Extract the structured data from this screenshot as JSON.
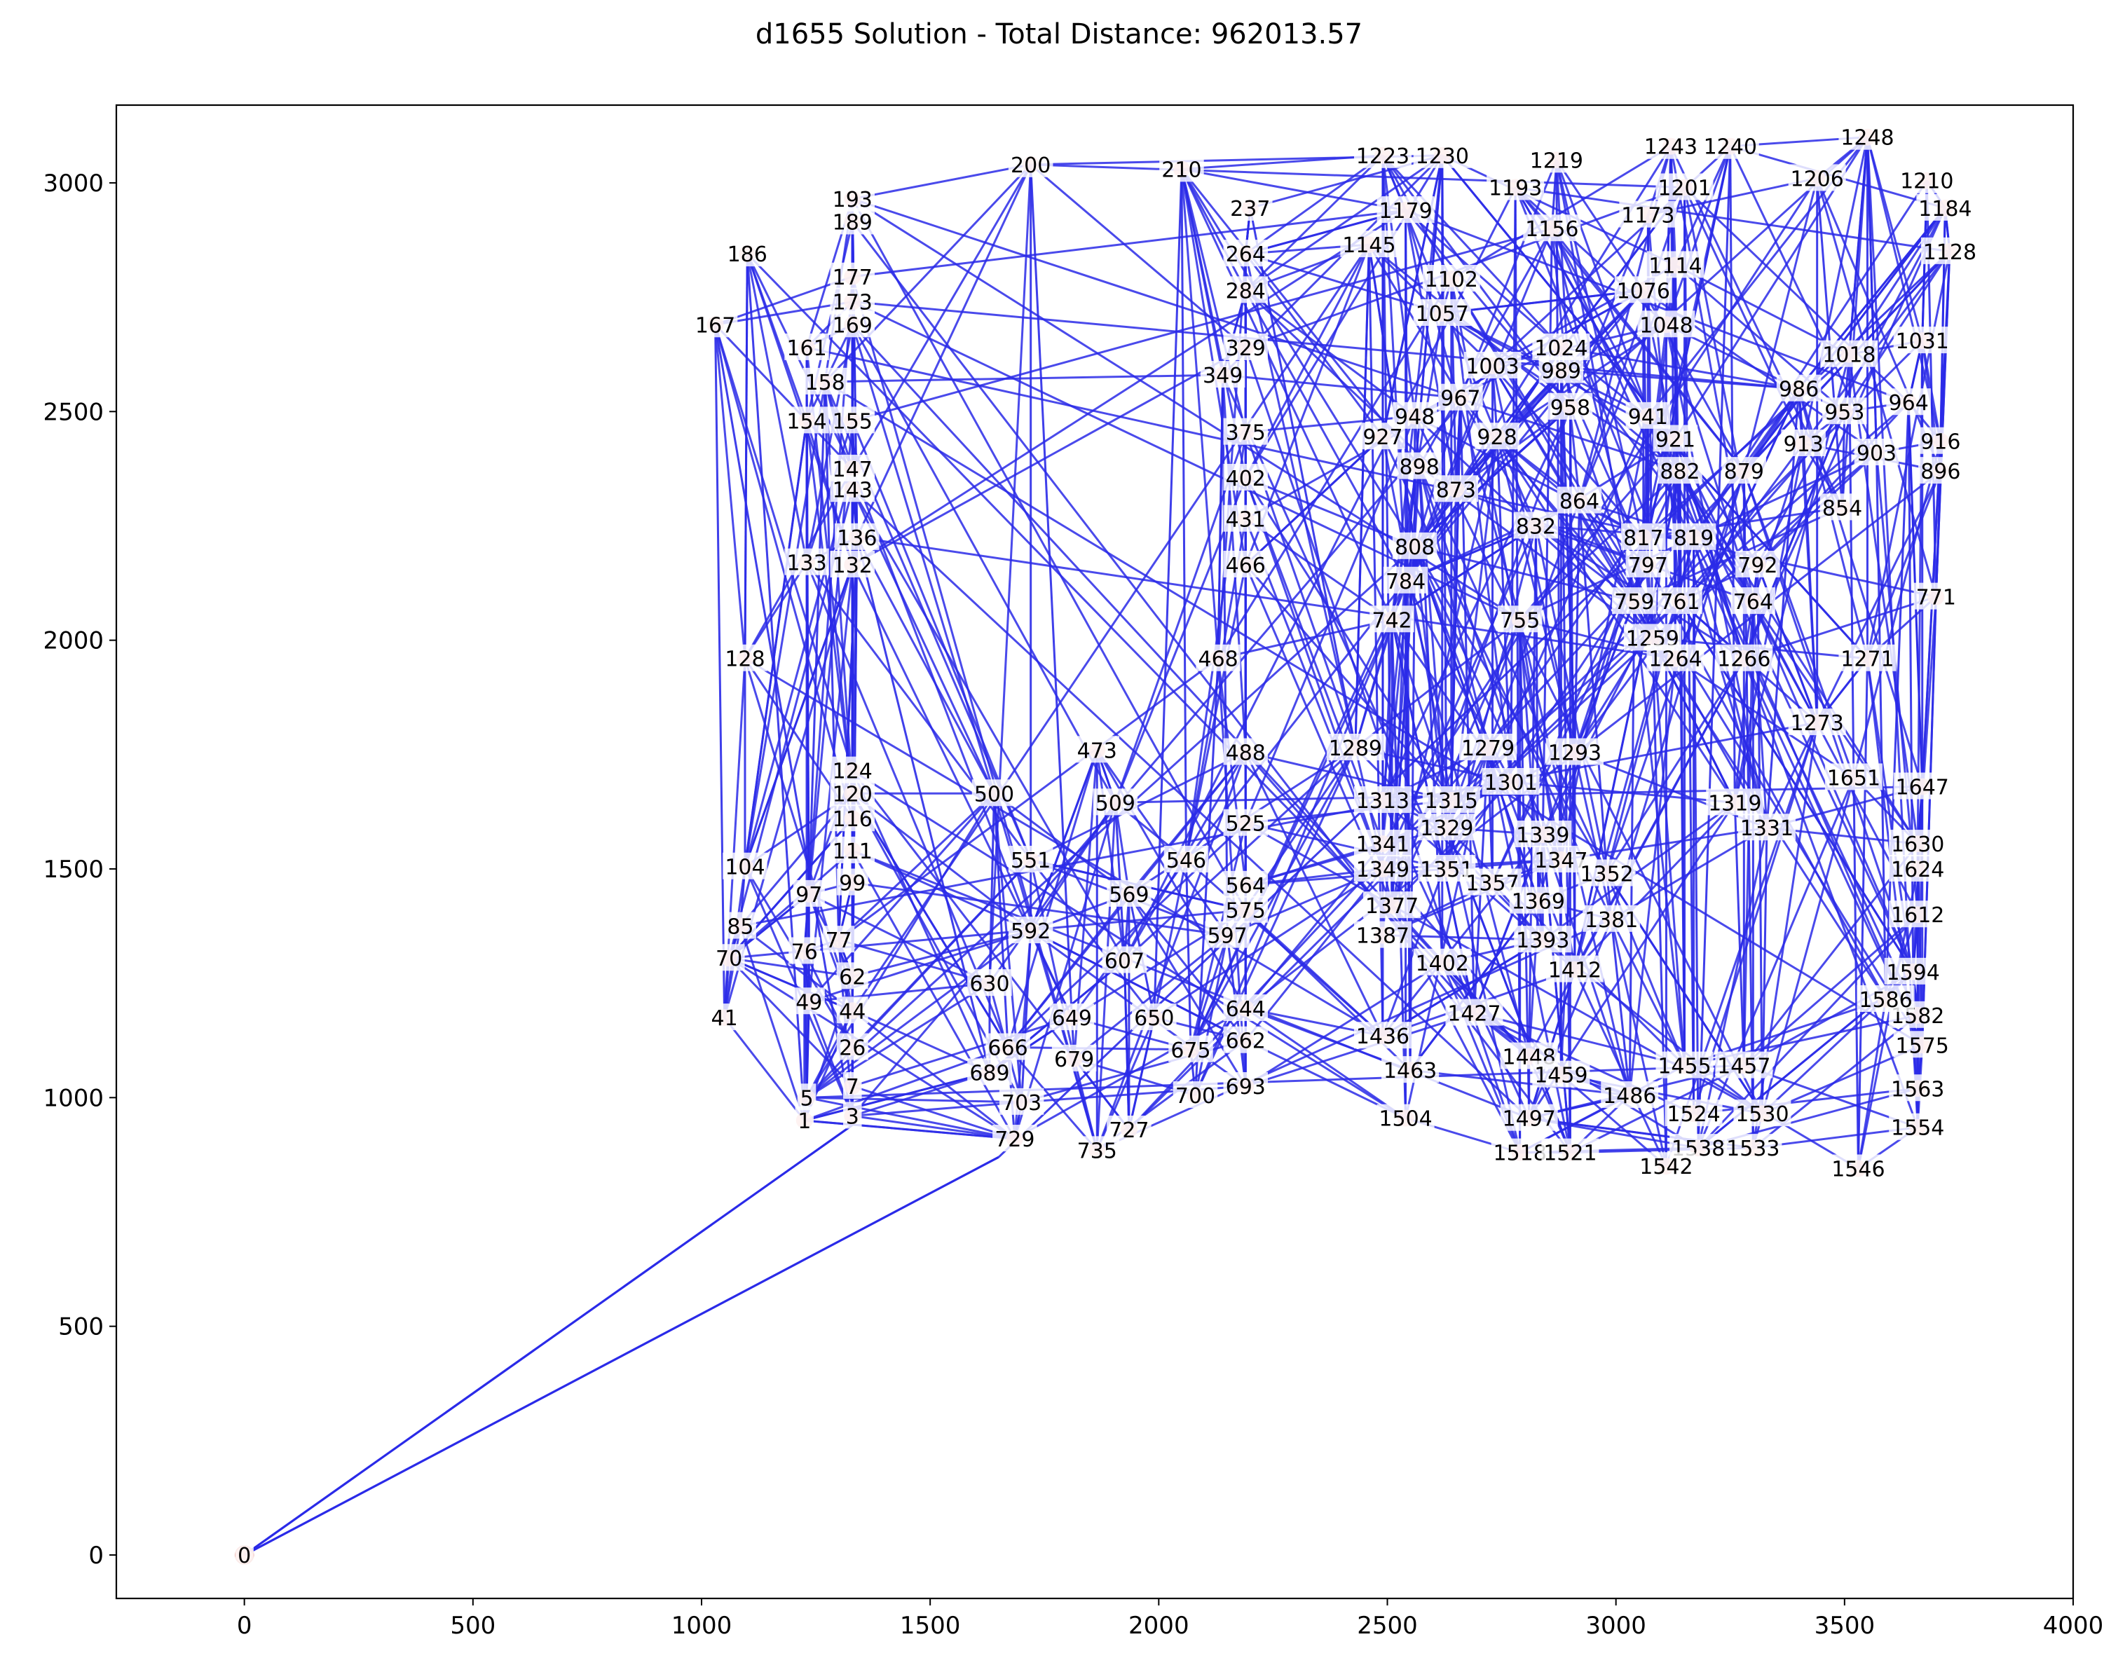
{
  "chart_data": {
    "type": "line",
    "subtype": "tsp-route",
    "title": "d1655 Solution - Total Distance: 962013.57",
    "xlabel": "",
    "ylabel": "",
    "xlim": [
      -280,
      4000
    ],
    "ylim": [
      -95,
      3170
    ],
    "xticks": [
      0,
      500,
      1000,
      1500,
      2000,
      2500,
      3000,
      3500,
      4000
    ],
    "yticks": [
      0,
      500,
      1000,
      1500,
      2000,
      2500,
      3000
    ],
    "grid": false,
    "legend": "none",
    "node_count": 1655,
    "colors": {
      "route": "#2a2ae8",
      "node": "#f4a8a0",
      "label_box": "#ffffff"
    },
    "depot": {
      "label": "0",
      "x": 0,
      "y": 0
    },
    "route_entry": [
      {
        "from": "0",
        "x": 1330,
        "y": 940
      },
      {
        "from": "0",
        "x": 1650,
        "y": 870
      }
    ],
    "visible_nodes": [
      {
        "label": "1",
        "x": 1225,
        "y": 950
      },
      {
        "label": "3",
        "x": 1330,
        "y": 960
      },
      {
        "label": "5",
        "x": 1230,
        "y": 1000
      },
      {
        "label": "7",
        "x": 1330,
        "y": 1025
      },
      {
        "label": "26",
        "x": 1330,
        "y": 1110
      },
      {
        "label": "41",
        "x": 1050,
        "y": 1175
      },
      {
        "label": "44",
        "x": 1330,
        "y": 1190
      },
      {
        "label": "49",
        "x": 1235,
        "y": 1210
      },
      {
        "label": "62",
        "x": 1330,
        "y": 1265
      },
      {
        "label": "70",
        "x": 1060,
        "y": 1305
      },
      {
        "label": "76",
        "x": 1225,
        "y": 1320
      },
      {
        "label": "77",
        "x": 1300,
        "y": 1345
      },
      {
        "label": "85",
        "x": 1085,
        "y": 1375
      },
      {
        "label": "97",
        "x": 1235,
        "y": 1445
      },
      {
        "label": "99",
        "x": 1330,
        "y": 1470
      },
      {
        "label": "104",
        "x": 1095,
        "y": 1505
      },
      {
        "label": "111",
        "x": 1330,
        "y": 1540
      },
      {
        "label": "116",
        "x": 1330,
        "y": 1610
      },
      {
        "label": "120",
        "x": 1330,
        "y": 1665
      },
      {
        "label": "124",
        "x": 1330,
        "y": 1715
      },
      {
        "label": "128",
        "x": 1095,
        "y": 1960
      },
      {
        "label": "132",
        "x": 1330,
        "y": 2165
      },
      {
        "label": "133",
        "x": 1230,
        "y": 2170
      },
      {
        "label": "136",
        "x": 1340,
        "y": 2225
      },
      {
        "label": "143",
        "x": 1330,
        "y": 2330
      },
      {
        "label": "147",
        "x": 1330,
        "y": 2375
      },
      {
        "label": "154",
        "x": 1230,
        "y": 2480
      },
      {
        "label": "155",
        "x": 1330,
        "y": 2480
      },
      {
        "label": "158",
        "x": 1270,
        "y": 2565
      },
      {
        "label": "161",
        "x": 1230,
        "y": 2640
      },
      {
        "label": "167",
        "x": 1030,
        "y": 2690
      },
      {
        "label": "169",
        "x": 1330,
        "y": 2690
      },
      {
        "label": "173",
        "x": 1330,
        "y": 2740
      },
      {
        "label": "177",
        "x": 1330,
        "y": 2795
      },
      {
        "label": "186",
        "x": 1100,
        "y": 2845
      },
      {
        "label": "189",
        "x": 1330,
        "y": 2915
      },
      {
        "label": "193",
        "x": 1330,
        "y": 2965
      },
      {
        "label": "200",
        "x": 1720,
        "y": 3040
      },
      {
        "label": "210",
        "x": 2050,
        "y": 3030
      },
      {
        "label": "237",
        "x": 2200,
        "y": 2945
      },
      {
        "label": "264",
        "x": 2190,
        "y": 2845
      },
      {
        "label": "284",
        "x": 2190,
        "y": 2765
      },
      {
        "label": "329",
        "x": 2190,
        "y": 2640
      },
      {
        "label": "349",
        "x": 2140,
        "y": 2580
      },
      {
        "label": "375",
        "x": 2190,
        "y": 2455
      },
      {
        "label": "402",
        "x": 2190,
        "y": 2355
      },
      {
        "label": "431",
        "x": 2190,
        "y": 2265
      },
      {
        "label": "466",
        "x": 2190,
        "y": 2165
      },
      {
        "label": "468",
        "x": 2130,
        "y": 1960
      },
      {
        "label": "473",
        "x": 1865,
        "y": 1760
      },
      {
        "label": "488",
        "x": 2190,
        "y": 1755
      },
      {
        "label": "500",
        "x": 1640,
        "y": 1665
      },
      {
        "label": "509",
        "x": 1905,
        "y": 1645
      },
      {
        "label": "525",
        "x": 2190,
        "y": 1600
      },
      {
        "label": "546",
        "x": 2060,
        "y": 1520
      },
      {
        "label": "551",
        "x": 1720,
        "y": 1520
      },
      {
        "label": "564",
        "x": 2190,
        "y": 1465
      },
      {
        "label": "569",
        "x": 1935,
        "y": 1445
      },
      {
        "label": "575",
        "x": 2190,
        "y": 1410
      },
      {
        "label": "592",
        "x": 1720,
        "y": 1365
      },
      {
        "label": "597",
        "x": 2150,
        "y": 1355
      },
      {
        "label": "607",
        "x": 1925,
        "y": 1300
      },
      {
        "label": "630",
        "x": 1630,
        "y": 1250
      },
      {
        "label": "644",
        "x": 2190,
        "y": 1195
      },
      {
        "label": "649",
        "x": 1810,
        "y": 1175
      },
      {
        "label": "650",
        "x": 1990,
        "y": 1175
      },
      {
        "label": "662",
        "x": 2190,
        "y": 1125
      },
      {
        "label": "666",
        "x": 1670,
        "y": 1110
      },
      {
        "label": "675",
        "x": 2070,
        "y": 1105
      },
      {
        "label": "679",
        "x": 1815,
        "y": 1085
      },
      {
        "label": "689",
        "x": 1630,
        "y": 1055
      },
      {
        "label": "693",
        "x": 2190,
        "y": 1025
      },
      {
        "label": "700",
        "x": 2080,
        "y": 1005
      },
      {
        "label": "703",
        "x": 1700,
        "y": 990
      },
      {
        "label": "727",
        "x": 1935,
        "y": 930
      },
      {
        "label": "729",
        "x": 1685,
        "y": 910
      },
      {
        "label": "735",
        "x": 1865,
        "y": 885
      },
      {
        "label": "742",
        "x": 2510,
        "y": 2045
      },
      {
        "label": "755",
        "x": 2790,
        "y": 2045
      },
      {
        "label": "759",
        "x": 3040,
        "y": 2085
      },
      {
        "label": "761",
        "x": 3140,
        "y": 2085
      },
      {
        "label": "764",
        "x": 3300,
        "y": 2085
      },
      {
        "label": "771",
        "x": 3700,
        "y": 2095
      },
      {
        "label": "784",
        "x": 2540,
        "y": 2130
      },
      {
        "label": "792",
        "x": 3310,
        "y": 2165
      },
      {
        "label": "797",
        "x": 3070,
        "y": 2165
      },
      {
        "label": "808",
        "x": 2560,
        "y": 2205
      },
      {
        "label": "817",
        "x": 3060,
        "y": 2225
      },
      {
        "label": "819",
        "x": 3170,
        "y": 2225
      },
      {
        "label": "832",
        "x": 2825,
        "y": 2250
      },
      {
        "label": "854",
        "x": 3495,
        "y": 2290
      },
      {
        "label": "864",
        "x": 2920,
        "y": 2305
      },
      {
        "label": "873",
        "x": 2650,
        "y": 2330
      },
      {
        "label": "879",
        "x": 3280,
        "y": 2370
      },
      {
        "label": "882",
        "x": 3140,
        "y": 2370
      },
      {
        "label": "896",
        "x": 3710,
        "y": 2370
      },
      {
        "label": "898",
        "x": 2570,
        "y": 2380
      },
      {
        "label": "903",
        "x": 3570,
        "y": 2410
      },
      {
        "label": "913",
        "x": 3410,
        "y": 2430
      },
      {
        "label": "916",
        "x": 3710,
        "y": 2435
      },
      {
        "label": "921",
        "x": 3130,
        "y": 2440
      },
      {
        "label": "927",
        "x": 2490,
        "y": 2445
      },
      {
        "label": "928",
        "x": 2740,
        "y": 2445
      },
      {
        "label": "941",
        "x": 3070,
        "y": 2490
      },
      {
        "label": "948",
        "x": 2560,
        "y": 2490
      },
      {
        "label": "953",
        "x": 3500,
        "y": 2500
      },
      {
        "label": "958",
        "x": 2900,
        "y": 2510
      },
      {
        "label": "964",
        "x": 3640,
        "y": 2520
      },
      {
        "label": "967",
        "x": 2660,
        "y": 2530
      },
      {
        "label": "986",
        "x": 3400,
        "y": 2550
      },
      {
        "label": "989",
        "x": 2880,
        "y": 2590
      },
      {
        "label": "1003",
        "x": 2730,
        "y": 2600
      },
      {
        "label": "1018",
        "x": 3510,
        "y": 2625
      },
      {
        "label": "1024",
        "x": 2880,
        "y": 2640
      },
      {
        "label": "1031",
        "x": 3670,
        "y": 2655
      },
      {
        "label": "1048",
        "x": 3110,
        "y": 2690
      },
      {
        "label": "1057",
        "x": 2620,
        "y": 2715
      },
      {
        "label": "1076",
        "x": 3060,
        "y": 2765
      },
      {
        "label": "1102",
        "x": 2640,
        "y": 2790
      },
      {
        "label": "1114",
        "x": 3130,
        "y": 2820
      },
      {
        "label": "1128",
        "x": 3730,
        "y": 2850
      },
      {
        "label": "1145",
        "x": 2460,
        "y": 2865
      },
      {
        "label": "1156",
        "x": 2860,
        "y": 2900
      },
      {
        "label": "1173",
        "x": 3070,
        "y": 2930
      },
      {
        "label": "1179",
        "x": 2540,
        "y": 2940
      },
      {
        "label": "1184",
        "x": 3720,
        "y": 2945
      },
      {
        "label": "1193",
        "x": 2780,
        "y": 2990
      },
      {
        "label": "1201",
        "x": 3150,
        "y": 2990
      },
      {
        "label": "1206",
        "x": 3440,
        "y": 3010
      },
      {
        "label": "1210",
        "x": 3680,
        "y": 3005
      },
      {
        "label": "1219",
        "x": 2870,
        "y": 3050
      },
      {
        "label": "1223",
        "x": 2490,
        "y": 3060
      },
      {
        "label": "1230",
        "x": 2620,
        "y": 3060
      },
      {
        "label": "1240",
        "x": 3250,
        "y": 3080
      },
      {
        "label": "1243",
        "x": 3120,
        "y": 3080
      },
      {
        "label": "1248",
        "x": 3550,
        "y": 3100
      },
      {
        "label": "1259",
        "x": 3080,
        "y": 2005
      },
      {
        "label": "1264",
        "x": 3130,
        "y": 1960
      },
      {
        "label": "1266",
        "x": 3280,
        "y": 1960
      },
      {
        "label": "1271",
        "x": 3550,
        "y": 1960
      },
      {
        "label": "1273",
        "x": 3440,
        "y": 1820
      },
      {
        "label": "1279",
        "x": 2720,
        "y": 1765
      },
      {
        "label": "1289",
        "x": 2430,
        "y": 1765
      },
      {
        "label": "1293",
        "x": 2910,
        "y": 1755
      },
      {
        "label": "1301",
        "x": 2770,
        "y": 1690
      },
      {
        "label": "1313",
        "x": 2490,
        "y": 1650
      },
      {
        "label": "1315",
        "x": 2640,
        "y": 1650
      },
      {
        "label": "1319",
        "x": 3260,
        "y": 1645
      },
      {
        "label": "1329",
        "x": 2630,
        "y": 1590
      },
      {
        "label": "1331",
        "x": 3330,
        "y": 1590
      },
      {
        "label": "1339",
        "x": 2840,
        "y": 1575
      },
      {
        "label": "1341",
        "x": 2490,
        "y": 1555
      },
      {
        "label": "1347",
        "x": 2880,
        "y": 1520
      },
      {
        "label": "1349",
        "x": 2490,
        "y": 1500
      },
      {
        "label": "1351",
        "x": 2630,
        "y": 1500
      },
      {
        "label": "1352",
        "x": 2980,
        "y": 1490
      },
      {
        "label": "1357",
        "x": 2730,
        "y": 1470
      },
      {
        "label": "1369",
        "x": 2830,
        "y": 1430
      },
      {
        "label": "1377",
        "x": 2510,
        "y": 1420
      },
      {
        "label": "1381",
        "x": 2990,
        "y": 1390
      },
      {
        "label": "1387",
        "x": 2490,
        "y": 1355
      },
      {
        "label": "1393",
        "x": 2840,
        "y": 1345
      },
      {
        "label": "1402",
        "x": 2620,
        "y": 1295
      },
      {
        "label": "1412",
        "x": 2910,
        "y": 1280
      },
      {
        "label": "1427",
        "x": 2690,
        "y": 1185
      },
      {
        "label": "1436",
        "x": 2490,
        "y": 1135
      },
      {
        "label": "1448",
        "x": 2810,
        "y": 1090
      },
      {
        "label": "1455",
        "x": 3150,
        "y": 1070
      },
      {
        "label": "1457",
        "x": 3280,
        "y": 1070
      },
      {
        "label": "1459",
        "x": 2880,
        "y": 1050
      },
      {
        "label": "1463",
        "x": 2550,
        "y": 1060
      },
      {
        "label": "1486",
        "x": 3030,
        "y": 1005
      },
      {
        "label": "1497",
        "x": 2810,
        "y": 955
      },
      {
        "label": "1504",
        "x": 2540,
        "y": 955
      },
      {
        "label": "1518",
        "x": 2790,
        "y": 880
      },
      {
        "label": "1521",
        "x": 2900,
        "y": 880
      },
      {
        "label": "1524",
        "x": 3170,
        "y": 965
      },
      {
        "label": "1530",
        "x": 3320,
        "y": 965
      },
      {
        "label": "1533",
        "x": 3300,
        "y": 890
      },
      {
        "label": "1538",
        "x": 3180,
        "y": 890
      },
      {
        "label": "1542",
        "x": 3110,
        "y": 850
      },
      {
        "label": "1546",
        "x": 3530,
        "y": 845
      },
      {
        "label": "1554",
        "x": 3660,
        "y": 935
      },
      {
        "label": "1563",
        "x": 3660,
        "y": 1020
      },
      {
        "label": "1575",
        "x": 3670,
        "y": 1115
      },
      {
        "label": "1582",
        "x": 3660,
        "y": 1180
      },
      {
        "label": "1586",
        "x": 3590,
        "y": 1215
      },
      {
        "label": "1594",
        "x": 3650,
        "y": 1275
      },
      {
        "label": "1612",
        "x": 3660,
        "y": 1400
      },
      {
        "label": "1624",
        "x": 3660,
        "y": 1500
      },
      {
        "label": "1630",
        "x": 3660,
        "y": 1555
      },
      {
        "label": "1647",
        "x": 3670,
        "y": 1680
      },
      {
        "label": "1651",
        "x": 3520,
        "y": 1700
      }
    ]
  }
}
